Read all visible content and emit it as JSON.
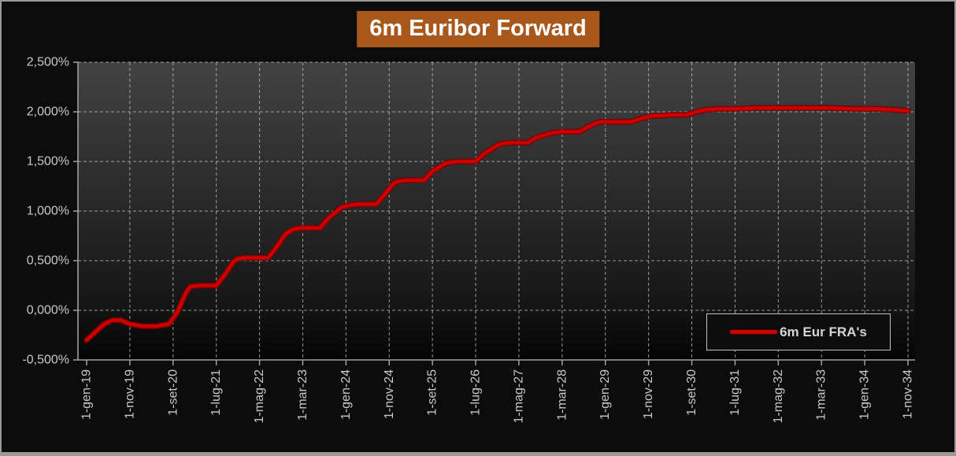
{
  "window": {
    "title": "6m Euribor Forward"
  },
  "colors": {
    "background": "#0C0C0C",
    "frame_border": "#9A9A9A",
    "title_bg": "#A8581B",
    "title_text": "#FFFFFF",
    "plot_top": "#424242",
    "plot_bottom": "#040404",
    "grid": "#C4C4C4",
    "axis": "#A0A0A0",
    "tick_text": "#C9C9C9",
    "series_red": "#CC0000",
    "series_red_dark": "#7E0000",
    "legend_border": "#C3C3C3",
    "legend_bg": "#0D0D0D",
    "legend_text": "#D5D5D5"
  },
  "legend": {
    "label": "6m Eur FRA's",
    "position": "bottom-right-inside"
  },
  "chart_data": {
    "type": "line",
    "title": "6m Euribor Forward",
    "xlabel": "",
    "ylabel": "",
    "x_range_months": [
      0,
      190
    ],
    "ylim": [
      -0.5,
      2.5
    ],
    "grid": "dashed",
    "legend_position": "bottom-right-inside",
    "y_ticks": [
      {
        "v": 2.5,
        "label": "2,500%"
      },
      {
        "v": 2.0,
        "label": "2,000%"
      },
      {
        "v": 1.5,
        "label": "1,500%"
      },
      {
        "v": 1.0,
        "label": "1,000%"
      },
      {
        "v": 0.5,
        "label": "0,500%"
      },
      {
        "v": 0.0,
        "label": "0,000%"
      },
      {
        "v": -0.5,
        "label": "-0,500%"
      }
    ],
    "x_ticks": [
      {
        "m": 0,
        "label": "1-gen-19"
      },
      {
        "m": 10,
        "label": "1-nov-19"
      },
      {
        "m": 20,
        "label": "1-set-20"
      },
      {
        "m": 30,
        "label": "1-lug-21"
      },
      {
        "m": 40,
        "label": "1-mag-22"
      },
      {
        "m": 50,
        "label": "1-mar-23"
      },
      {
        "m": 60,
        "label": "1-gen-24"
      },
      {
        "m": 70,
        "label": "1-nov-24"
      },
      {
        "m": 80,
        "label": "1-set-25"
      },
      {
        "m": 90,
        "label": "1-lug-26"
      },
      {
        "m": 100,
        "label": "1-mag-27"
      },
      {
        "m": 110,
        "label": "1-mar-28"
      },
      {
        "m": 120,
        "label": "1-gen-29"
      },
      {
        "m": 130,
        "label": "1-nov-29"
      },
      {
        "m": 140,
        "label": "1-set-30"
      },
      {
        "m": 150,
        "label": "1-lug-31"
      },
      {
        "m": 160,
        "label": "1-mag-32"
      },
      {
        "m": 170,
        "label": "1-mar-33"
      },
      {
        "m": 180,
        "label": "1-gen-34"
      },
      {
        "m": 190,
        "label": "1-nov-34"
      }
    ],
    "series": [
      {
        "name": "6m Eur FRA's",
        "color": "#CC0000",
        "points_month_pct": [
          [
            0,
            -0.3
          ],
          [
            2,
            -0.22
          ],
          [
            4,
            -0.14
          ],
          [
            6,
            -0.1
          ],
          [
            8,
            -0.1
          ],
          [
            10,
            -0.14
          ],
          [
            13,
            -0.16
          ],
          [
            16,
            -0.16
          ],
          [
            19,
            -0.14
          ],
          [
            21,
            -0.02
          ],
          [
            23,
            0.18
          ],
          [
            24,
            0.24
          ],
          [
            26,
            0.25
          ],
          [
            30,
            0.25
          ],
          [
            32,
            0.36
          ],
          [
            34,
            0.49
          ],
          [
            35,
            0.52
          ],
          [
            37,
            0.53
          ],
          [
            42,
            0.53
          ],
          [
            44,
            0.64
          ],
          [
            46,
            0.77
          ],
          [
            48,
            0.82
          ],
          [
            50,
            0.83
          ],
          [
            54,
            0.83
          ],
          [
            56,
            0.93
          ],
          [
            59,
            1.04
          ],
          [
            61,
            1.06
          ],
          [
            63,
            1.07
          ],
          [
            67,
            1.07
          ],
          [
            69,
            1.17
          ],
          [
            71,
            1.28
          ],
          [
            72,
            1.3
          ],
          [
            74,
            1.31
          ],
          [
            78,
            1.31
          ],
          [
            80,
            1.4
          ],
          [
            83,
            1.48
          ],
          [
            84,
            1.49
          ],
          [
            86,
            1.5
          ],
          [
            90,
            1.5
          ],
          [
            92,
            1.58
          ],
          [
            95,
            1.66
          ],
          [
            96,
            1.68
          ],
          [
            98,
            1.69
          ],
          [
            102,
            1.69
          ],
          [
            104,
            1.74
          ],
          [
            107,
            1.78
          ],
          [
            108,
            1.79
          ],
          [
            110,
            1.8
          ],
          [
            114,
            1.8
          ],
          [
            116,
            1.85
          ],
          [
            118,
            1.89
          ],
          [
            119,
            1.9
          ],
          [
            121,
            1.9
          ],
          [
            126,
            1.9
          ],
          [
            128,
            1.93
          ],
          [
            131,
            1.96
          ],
          [
            133,
            1.96
          ],
          [
            135,
            1.97
          ],
          [
            139,
            1.97
          ],
          [
            141,
            2.0
          ],
          [
            143,
            2.02
          ],
          [
            146,
            2.03
          ],
          [
            150,
            2.03
          ],
          [
            155,
            2.04
          ],
          [
            165,
            2.04
          ],
          [
            172,
            2.04
          ],
          [
            178,
            2.03
          ],
          [
            183,
            2.03
          ],
          [
            187,
            2.02
          ],
          [
            190,
            2.01
          ]
        ]
      }
    ]
  }
}
